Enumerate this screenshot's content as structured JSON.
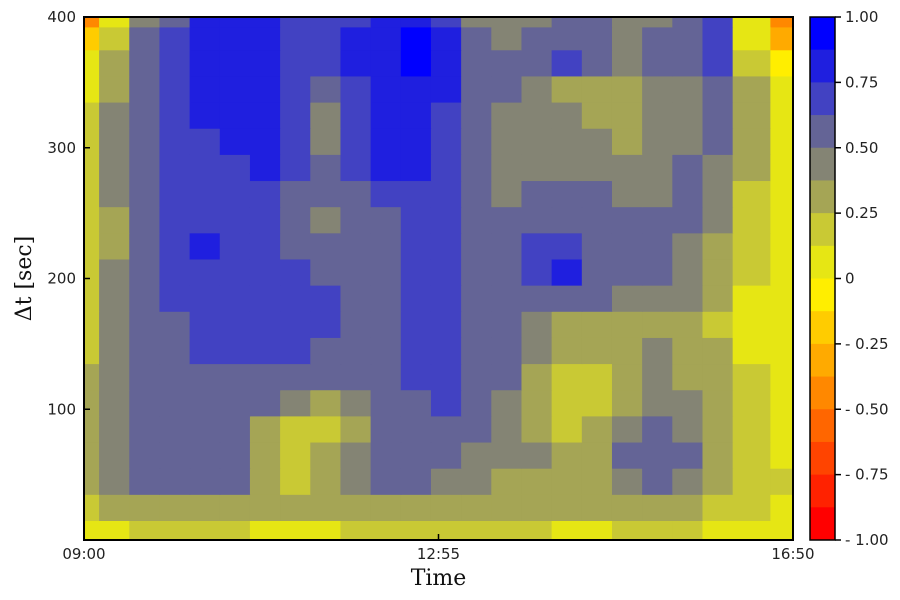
{
  "chart_data": {
    "type": "heatmap",
    "title": "",
    "xlabel": "Time",
    "ylabel": "Δt [sec]",
    "x_ticks": [
      "09:00",
      "12:55",
      "16:50"
    ],
    "y_ticks": [
      "100",
      "200",
      "300",
      "400"
    ],
    "xlim": [
      "09:00",
      "16:50"
    ],
    "ylim": [
      0,
      400
    ],
    "colorbar": {
      "range": [
        -1.0,
        1.0
      ],
      "tick_labels": [
        "1.00",
        "0.75",
        "0.50",
        "0.25",
        "0",
        "- 0.25",
        "- 0.50",
        "- 0.75",
        "- 1.00"
      ],
      "levels": [
        {
          "lo": 0.875,
          "hi": 1.0,
          "color": "#0000ff"
        },
        {
          "lo": 0.75,
          "hi": 0.875,
          "color": "#1f1fdf"
        },
        {
          "lo": 0.625,
          "hi": 0.75,
          "color": "#4242c2"
        },
        {
          "lo": 0.5,
          "hi": 0.625,
          "color": "#646496"
        },
        {
          "lo": 0.375,
          "hi": 0.5,
          "color": "#848474"
        },
        {
          "lo": 0.25,
          "hi": 0.375,
          "color": "#a5a555"
        },
        {
          "lo": 0.125,
          "hi": 0.25,
          "color": "#c9c934"
        },
        {
          "lo": 0.0,
          "hi": 0.125,
          "color": "#e6e614"
        },
        {
          "lo": -0.125,
          "hi": 0.0,
          "color": "#ffee00"
        },
        {
          "lo": -0.25,
          "hi": -0.125,
          "color": "#ffcc00"
        },
        {
          "lo": -0.375,
          "hi": -0.25,
          "color": "#ffaa00"
        },
        {
          "lo": -0.5,
          "hi": -0.375,
          "color": "#ff8800"
        },
        {
          "lo": -0.625,
          "hi": -0.5,
          "color": "#ff6600"
        },
        {
          "lo": -0.75,
          "hi": -0.625,
          "color": "#ff4400"
        },
        {
          "lo": -0.875,
          "hi": -0.75,
          "color": "#ff2200"
        },
        {
          "lo": -1.0,
          "hi": -0.875,
          "color": "#ff0000"
        }
      ]
    },
    "note_on_values": "correlation field, values read from contour colours",
    "grid": {
      "x": [
        "09:00",
        "09:20",
        "09:40",
        "10:00",
        "10:20",
        "10:40",
        "11:00",
        "11:20",
        "11:40",
        "12:00",
        "12:20",
        "12:40",
        "13:00",
        "13:20",
        "13:40",
        "14:00",
        "14:20",
        "14:40",
        "15:00",
        "15:20",
        "15:40",
        "16:00",
        "16:20",
        "16:50"
      ],
      "y": [
        5,
        25,
        45,
        65,
        85,
        105,
        125,
        145,
        165,
        185,
        205,
        225,
        245,
        265,
        285,
        305,
        325,
        345,
        365,
        385,
        400
      ],
      "z": [
        [
          0.08,
          0.12,
          0.15,
          0.2,
          0.2,
          0.15,
          0.1,
          0.1,
          0.12,
          0.15,
          0.15,
          0.2,
          0.2,
          0.15,
          0.15,
          0.15,
          0.1,
          0.1,
          0.15,
          0.15,
          0.15,
          0.12,
          0.1,
          0.08
        ],
        [
          0.15,
          0.25,
          0.3,
          0.35,
          0.35,
          0.3,
          0.25,
          0.25,
          0.3,
          0.3,
          0.3,
          0.3,
          0.3,
          0.3,
          0.3,
          0.3,
          0.25,
          0.25,
          0.3,
          0.3,
          0.25,
          0.2,
          0.18,
          0.12
        ],
        [
          0.25,
          0.4,
          0.5,
          0.55,
          0.55,
          0.5,
          0.3,
          0.2,
          0.3,
          0.45,
          0.5,
          0.55,
          0.45,
          0.4,
          0.35,
          0.35,
          0.3,
          0.3,
          0.45,
          0.55,
          0.45,
          0.3,
          0.2,
          0.15
        ],
        [
          0.3,
          0.45,
          0.55,
          0.6,
          0.6,
          0.55,
          0.3,
          0.15,
          0.25,
          0.45,
          0.55,
          0.6,
          0.55,
          0.45,
          0.4,
          0.38,
          0.3,
          0.3,
          0.5,
          0.6,
          0.5,
          0.3,
          0.18,
          0.1
        ],
        [
          0.3,
          0.45,
          0.55,
          0.6,
          0.6,
          0.55,
          0.35,
          0.15,
          0.2,
          0.35,
          0.55,
          0.6,
          0.6,
          0.5,
          0.42,
          0.3,
          0.2,
          0.25,
          0.45,
          0.5,
          0.45,
          0.3,
          0.18,
          0.1
        ],
        [
          0.28,
          0.45,
          0.55,
          0.6,
          0.6,
          0.55,
          0.5,
          0.4,
          0.35,
          0.4,
          0.55,
          0.6,
          0.65,
          0.55,
          0.45,
          0.3,
          0.15,
          0.18,
          0.35,
          0.45,
          0.4,
          0.3,
          0.18,
          0.08
        ],
        [
          0.25,
          0.45,
          0.55,
          0.6,
          0.62,
          0.6,
          0.62,
          0.6,
          0.58,
          0.6,
          0.6,
          0.65,
          0.7,
          0.6,
          0.5,
          0.35,
          0.2,
          0.15,
          0.3,
          0.4,
          0.35,
          0.28,
          0.15,
          0.06
        ],
        [
          0.22,
          0.42,
          0.55,
          0.6,
          0.65,
          0.7,
          0.7,
          0.65,
          0.62,
          0.62,
          0.62,
          0.68,
          0.72,
          0.62,
          0.5,
          0.38,
          0.25,
          0.25,
          0.35,
          0.4,
          0.35,
          0.25,
          0.12,
          0.04
        ],
        [
          0.2,
          0.4,
          0.55,
          0.62,
          0.65,
          0.72,
          0.72,
          0.7,
          0.65,
          0.62,
          0.62,
          0.68,
          0.72,
          0.62,
          0.52,
          0.45,
          0.35,
          0.3,
          0.32,
          0.36,
          0.32,
          0.22,
          0.1,
          0.02
        ],
        [
          0.18,
          0.4,
          0.55,
          0.65,
          0.68,
          0.72,
          0.72,
          0.7,
          0.65,
          0.62,
          0.6,
          0.66,
          0.7,
          0.62,
          0.58,
          0.6,
          0.6,
          0.5,
          0.48,
          0.45,
          0.4,
          0.28,
          0.12,
          0.02
        ],
        [
          0.16,
          0.38,
          0.55,
          0.65,
          0.7,
          0.72,
          0.72,
          0.7,
          0.62,
          0.6,
          0.6,
          0.64,
          0.68,
          0.6,
          0.58,
          0.68,
          0.76,
          0.62,
          0.56,
          0.52,
          0.46,
          0.32,
          0.14,
          0.04
        ],
        [
          0.16,
          0.36,
          0.56,
          0.66,
          0.76,
          0.66,
          0.64,
          0.62,
          0.58,
          0.58,
          0.6,
          0.64,
          0.66,
          0.58,
          0.56,
          0.66,
          0.7,
          0.62,
          0.56,
          0.52,
          0.48,
          0.36,
          0.18,
          0.04
        ],
        [
          0.16,
          0.36,
          0.56,
          0.64,
          0.66,
          0.64,
          0.66,
          0.6,
          0.45,
          0.55,
          0.62,
          0.66,
          0.66,
          0.56,
          0.52,
          0.58,
          0.62,
          0.6,
          0.52,
          0.5,
          0.5,
          0.4,
          0.22,
          0.06
        ],
        [
          0.18,
          0.38,
          0.56,
          0.64,
          0.68,
          0.7,
          0.72,
          0.62,
          0.5,
          0.62,
          0.7,
          0.72,
          0.68,
          0.56,
          0.48,
          0.5,
          0.55,
          0.55,
          0.45,
          0.45,
          0.5,
          0.42,
          0.24,
          0.08
        ],
        [
          0.2,
          0.4,
          0.56,
          0.64,
          0.7,
          0.74,
          0.76,
          0.68,
          0.55,
          0.66,
          0.76,
          0.78,
          0.72,
          0.58,
          0.46,
          0.42,
          0.45,
          0.46,
          0.38,
          0.4,
          0.5,
          0.45,
          0.26,
          0.08
        ],
        [
          0.18,
          0.4,
          0.58,
          0.68,
          0.74,
          0.8,
          0.78,
          0.72,
          0.42,
          0.7,
          0.8,
          0.82,
          0.74,
          0.58,
          0.44,
          0.38,
          0.4,
          0.38,
          0.34,
          0.38,
          0.48,
          0.5,
          0.28,
          0.06
        ],
        [
          0.14,
          0.38,
          0.58,
          0.7,
          0.76,
          0.82,
          0.78,
          0.72,
          0.45,
          0.72,
          0.82,
          0.84,
          0.74,
          0.6,
          0.46,
          0.4,
          0.38,
          0.3,
          0.3,
          0.38,
          0.45,
          0.52,
          0.28,
          0.04
        ],
        [
          0.12,
          0.36,
          0.58,
          0.7,
          0.78,
          0.84,
          0.8,
          0.72,
          0.62,
          0.72,
          0.84,
          0.86,
          0.76,
          0.62,
          0.5,
          0.42,
          0.36,
          0.28,
          0.3,
          0.4,
          0.48,
          0.58,
          0.26,
          0.02
        ],
        [
          0.06,
          0.34,
          0.58,
          0.7,
          0.8,
          0.86,
          0.8,
          0.74,
          0.66,
          0.76,
          0.86,
          0.88,
          0.78,
          0.6,
          0.52,
          0.6,
          0.68,
          0.62,
          0.42,
          0.5,
          0.58,
          0.72,
          0.22,
          -0.12
        ],
        [
          -0.2,
          0.2,
          0.5,
          0.66,
          0.78,
          0.84,
          0.78,
          0.72,
          0.68,
          0.76,
          0.86,
          0.88,
          0.76,
          0.5,
          0.42,
          0.5,
          0.6,
          0.62,
          0.42,
          0.5,
          0.6,
          0.72,
          0.1,
          -0.35
        ],
        [
          -0.4,
          0.1,
          0.45,
          0.62,
          0.76,
          0.82,
          0.76,
          0.7,
          0.66,
          0.74,
          0.84,
          0.86,
          0.74,
          0.45,
          0.38,
          0.48,
          0.55,
          0.58,
          0.4,
          0.48,
          0.55,
          0.68,
          0.05,
          -0.45
        ]
      ]
    }
  }
}
